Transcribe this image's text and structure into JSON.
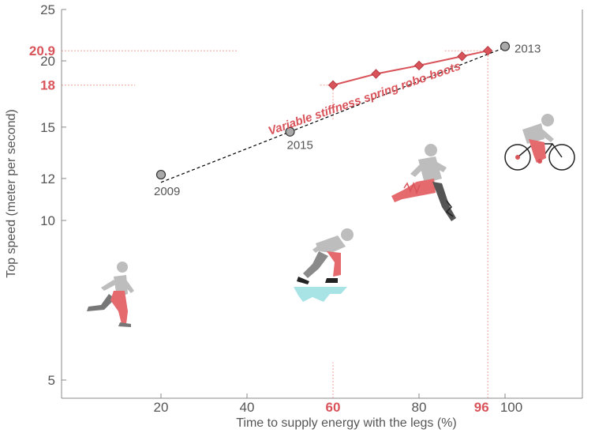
{
  "colors": {
    "accent": "#d9545a",
    "accent_light": "#f0a39c",
    "axis": "#888888",
    "text": "#555555",
    "year_point_fill": "#a9a9a9",
    "trend": "#000000",
    "figure_gray": "#bdbdbd",
    "figure_dark": "#777777",
    "ice": "#a8e4e6"
  },
  "chart_data": {
    "type": "scatter",
    "xlabel": "Time to supply energy with the legs (%)",
    "ylabel": "Top speed (meter per second)",
    "xlim": [
      0,
      120
    ],
    "ylim": [
      4.6,
      25
    ],
    "y_scale": "log",
    "grid": false,
    "x_ticks": [
      {
        "value": 20,
        "label": "20",
        "highlight": false
      },
      {
        "value": 40,
        "label": "40",
        "highlight": false
      },
      {
        "value": 60,
        "label": "60",
        "highlight": true
      },
      {
        "value": 80,
        "label": "80",
        "highlight": false
      },
      {
        "value": 96,
        "label": "96",
        "highlight": true
      },
      {
        "value": 100,
        "label": "100",
        "highlight": false
      }
    ],
    "y_ticks": [
      {
        "value": 5,
        "label": "5",
        "highlight": false
      },
      {
        "value": 10,
        "label": "10",
        "highlight": false
      },
      {
        "value": 12,
        "label": "12",
        "highlight": false
      },
      {
        "value": 15,
        "label": "15",
        "highlight": false
      },
      {
        "value": 18,
        "label": "18",
        "highlight": true
      },
      {
        "value": 20,
        "label": "20",
        "highlight": false
      },
      {
        "value": 20.9,
        "label": "20.9",
        "highlight": true
      },
      {
        "value": 25,
        "label": "25",
        "highlight": false
      }
    ],
    "year_points": [
      {
        "x": 20,
        "y": 12.2,
        "label": "2009"
      },
      {
        "x": 50,
        "y": 14.7,
        "label": "2015"
      },
      {
        "x": 100,
        "y": 21.3,
        "label": "2013"
      }
    ],
    "trend_line": {
      "style": "dashed",
      "x": [
        20,
        100
      ],
      "y": [
        11.8,
        21.2
      ]
    },
    "series": [
      {
        "name": "Variable stiffness spring robo-boots",
        "x": [
          60,
          70,
          80,
          90,
          96
        ],
        "y": [
          18.0,
          18.9,
          19.6,
          20.4,
          20.9
        ]
      }
    ],
    "guides": [
      {
        "axis": "y",
        "value": 20.9,
        "x_from": 0,
        "x_to": 38
      },
      {
        "axis": "y",
        "value": 18,
        "x_from": 0,
        "x_to": 14
      },
      {
        "axis": "y",
        "value": 18,
        "x_from": 57,
        "x_to": 60
      },
      {
        "axis": "y",
        "value": 20.9,
        "x_from": 86,
        "x_to": 96
      },
      {
        "axis": "x",
        "value": 60,
        "y_from": 4.6,
        "y_to": 5.4
      },
      {
        "axis": "x",
        "value": 60,
        "y_from": 15.5,
        "y_to": 18
      },
      {
        "axis": "x",
        "value": 96,
        "y_from": 4.6,
        "y_to": 20.9
      }
    ],
    "illustrations": [
      "sprinter",
      "speed-skater",
      "runner-with-robo-boots",
      "cyclist"
    ]
  }
}
